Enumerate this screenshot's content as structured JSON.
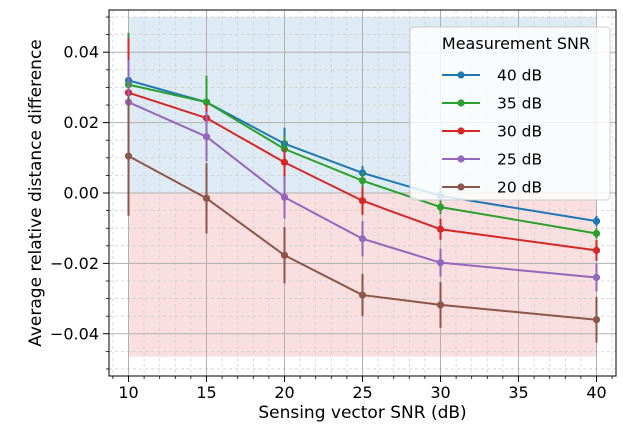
{
  "chart_data": {
    "type": "line",
    "title": "",
    "xlabel": "Sensing vector SNR (dB)",
    "ylabel": "Average relative distance difference",
    "xlim": [
      8.75,
      41.25
    ],
    "ylim": [
      -0.052,
      0.052
    ],
    "xticks": [
      10,
      15,
      20,
      25,
      30,
      35,
      40
    ],
    "xtick_labels": [
      "10",
      "15",
      "20",
      "25",
      "30",
      "35",
      "40"
    ],
    "yticks": [
      0.04,
      0.02,
      0.0,
      -0.02,
      -0.04
    ],
    "ytick_labels": [
      "0.04",
      "0.02",
      "0.00",
      "−0.02",
      "−0.04"
    ],
    "grid": true,
    "shaded_regions": [
      {
        "y_from": 0.0,
        "y_to": 0.05,
        "x_from": 10,
        "x_to": 40,
        "color": "#1f77b4",
        "opacity": 0.15
      },
      {
        "y_from": -0.0465,
        "y_to": 0.0,
        "x_from": 10,
        "x_to": 40,
        "color": "#d62728",
        "opacity": 0.15
      }
    ],
    "legend_title": "Measurement SNR",
    "legend_position": "top-right",
    "x": [
      10,
      15,
      20,
      25,
      30,
      40
    ],
    "series": [
      {
        "name": "40 dB",
        "color": "#1f77b4",
        "values": [
          0.032,
          0.0258,
          0.014,
          0.0057,
          -0.0008,
          -0.008
        ],
        "errors": [
          0.0135,
          0.005,
          0.0045,
          0.002,
          0.002,
          0.0015
        ]
      },
      {
        "name": "35 dB",
        "color": "#2ca02c",
        "values": [
          0.0308,
          0.0258,
          0.0125,
          0.0035,
          -0.004,
          -0.0115
        ],
        "errors": [
          0.0145,
          0.0075,
          0.0035,
          0.0025,
          0.002,
          0.0015
        ]
      },
      {
        "name": "30 dB",
        "color": "#d62728",
        "values": [
          0.0285,
          0.0213,
          0.0087,
          -0.0022,
          -0.0103,
          -0.0163
        ],
        "errors": [
          0.0155,
          0.004,
          0.004,
          0.004,
          0.003,
          0.003
        ]
      },
      {
        "name": "25 dB",
        "color": "#9467bd",
        "values": [
          0.0258,
          0.016,
          -0.0012,
          -0.013,
          -0.0198,
          -0.024
        ],
        "errors": [
          0.012,
          0.007,
          0.006,
          0.005,
          0.004,
          0.004
        ]
      },
      {
        "name": "20 dB",
        "color": "#8c564b",
        "values": [
          0.0105,
          -0.0015,
          -0.0177,
          -0.029,
          -0.0318,
          -0.036
        ],
        "errors": [
          0.017,
          0.01,
          0.008,
          0.006,
          0.0065,
          0.0065
        ]
      }
    ]
  }
}
